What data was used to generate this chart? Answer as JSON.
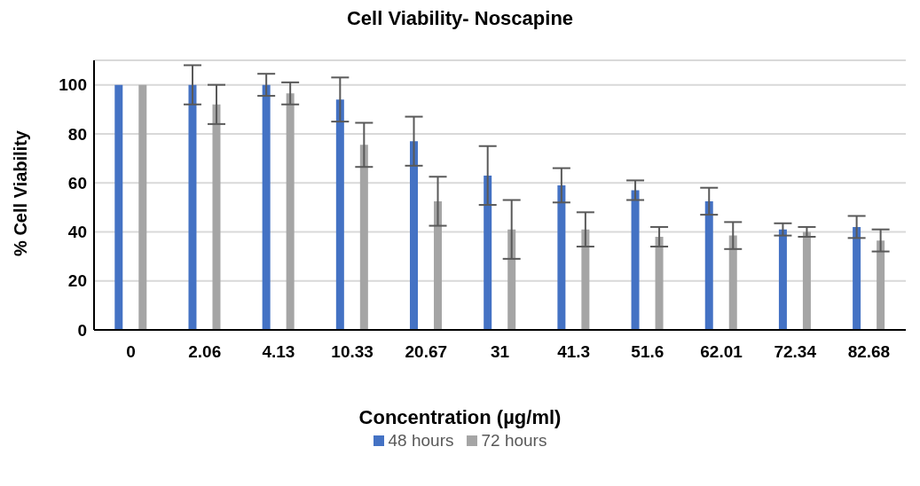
{
  "chart_data": {
    "type": "bar",
    "title": "Cell Viability- Noscapine",
    "xlabel": "Concentration (µg/ml)",
    "ylabel": "% Cell Viability",
    "categories": [
      "0",
      "2.06",
      "4.13",
      "10.33",
      "20.67",
      "31",
      "41.3",
      "51.6",
      "62.01",
      "72.34",
      "82.68"
    ],
    "series": [
      {
        "name": "48 hours",
        "color": "#4472c4",
        "values": [
          100,
          100,
          100,
          94,
          77,
          63,
          59,
          57,
          52.5,
          41,
          42
        ],
        "errors": [
          0,
          8,
          4.5,
          9,
          10,
          12,
          7,
          4,
          5.5,
          2.5,
          4.5
        ]
      },
      {
        "name": "72 hours",
        "color": "#a5a5a5",
        "values": [
          100,
          92,
          96.5,
          75.5,
          52.5,
          41,
          41,
          38,
          38.5,
          40,
          36.5
        ],
        "errors": [
          0,
          8,
          4.5,
          9,
          10,
          12,
          7,
          4,
          5.5,
          2,
          4.5
        ]
      }
    ],
    "ylim": [
      0,
      110
    ],
    "yticks": [
      0,
      20,
      40,
      60,
      80,
      100
    ],
    "grid": "y",
    "legend": "bottom"
  }
}
